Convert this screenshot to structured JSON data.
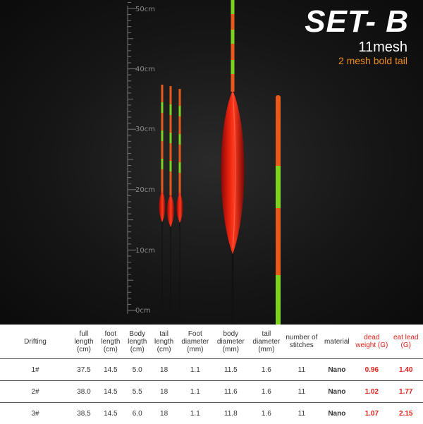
{
  "header": {
    "set_label": "SET- B",
    "mesh_label": "11mesh",
    "tail_label": "2 mesh bold tail"
  },
  "ruler": {
    "ticks": [
      "50cm",
      "40cm",
      "30cm",
      "20cm",
      "10cm",
      "0cm"
    ]
  },
  "table": {
    "headers": [
      {
        "label": "Drifting",
        "color": "#333333"
      },
      {
        "label": "full length (cm)",
        "color": "#333333"
      },
      {
        "label": "foot length (cm)",
        "color": "#333333"
      },
      {
        "label": "Body length (cm)",
        "color": "#333333"
      },
      {
        "label": "tail length (cm)",
        "color": "#333333"
      },
      {
        "label": "Foot diameter (mm)",
        "color": "#333333"
      },
      {
        "label": "body diameter (mm)",
        "color": "#333333"
      },
      {
        "label": "tail diameter (mm)",
        "color": "#333333"
      },
      {
        "label": "number of stitches",
        "color": "#333333"
      },
      {
        "label": "material",
        "color": "#333333"
      },
      {
        "label": "dead weight (G)",
        "color": "#e0201a"
      },
      {
        "label": "eat lead (G)",
        "color": "#e0201a"
      }
    ],
    "rows": [
      [
        "1#",
        "37.5",
        "14.5",
        "5.0",
        "18",
        "1.1",
        "11.5",
        "1.6",
        "11",
        "Nano",
        "0.96",
        "1.40"
      ],
      [
        "2#",
        "38.0",
        "14.5",
        "5.5",
        "18",
        "1.1",
        "11.6",
        "1.6",
        "11",
        "Nano",
        "1.02",
        "1.77"
      ],
      [
        "3#",
        "38.5",
        "14.5",
        "6.0",
        "18",
        "1.1",
        "11.8",
        "1.6",
        "11",
        "Nano",
        "1.07",
        "2.15"
      ]
    ]
  }
}
